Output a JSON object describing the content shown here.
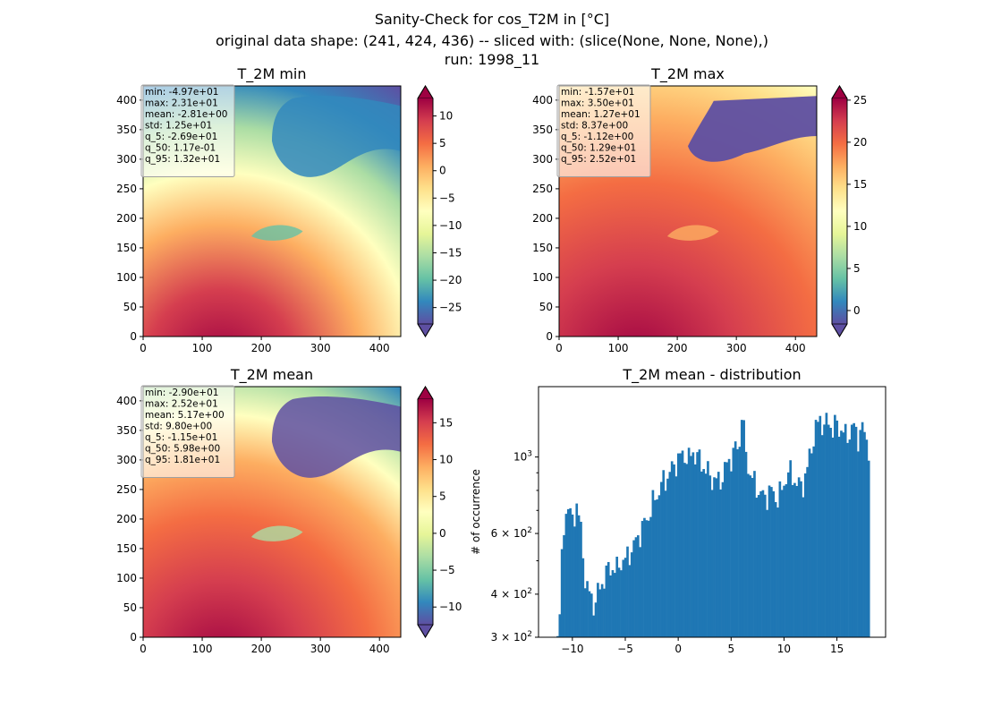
{
  "figure": {
    "suptitle_lines": [
      "Sanity-Check for cos_T2M in [°C]",
      "original data shape: (241, 424, 436) -- sliced with: (slice(None, None, None),)",
      "run: 1998_11"
    ]
  },
  "colors": {
    "spectral_r": [
      "#5e4fa2",
      "#3288bd",
      "#66c2a5",
      "#abdda4",
      "#e6f598",
      "#ffffbf",
      "#fee08b",
      "#fdae61",
      "#f46d43",
      "#d53e4f",
      "#9e0142"
    ],
    "histogram_bar": "#1f77b4",
    "stats_box_fill": "#ffffff",
    "stats_box_edge": "#a0a0a0"
  },
  "chart_data": [
    {
      "type": "heatmap",
      "title": "T_2M min",
      "xlim": [
        0,
        436
      ],
      "ylim": [
        0,
        424
      ],
      "xticks": [
        0,
        100,
        200,
        300,
        400
      ],
      "yticks": [
        0,
        50,
        100,
        150,
        200,
        250,
        300,
        350,
        400
      ],
      "colorbar": {
        "vmin": -28,
        "vmax": 13.2,
        "ticks": [
          10,
          5,
          0,
          -5,
          -10,
          -15,
          -20,
          -25
        ],
        "extend": "both"
      },
      "stats": [
        "min: -4.97e+01",
        "max: 2.31e+01",
        "mean: -2.81e+00",
        "std: 1.25e+01",
        "q_5: -2.69e+01",
        "q_50: 1.17e-01",
        "q_95: 1.32e+01"
      ]
    },
    {
      "type": "heatmap",
      "title": "T_2M max",
      "xlim": [
        0,
        436
      ],
      "ylim": [
        0,
        424
      ],
      "xticks": [
        0,
        100,
        200,
        300,
        400
      ],
      "yticks": [
        0,
        50,
        100,
        150,
        200,
        250,
        300,
        350,
        400
      ],
      "colorbar": {
        "vmin": -1.6,
        "vmax": 25.2,
        "ticks": [
          25,
          20,
          15,
          10,
          5,
          0
        ],
        "extend": "both"
      },
      "stats": [
        "min: -1.57e+01",
        "max: 3.50e+01",
        "mean: 1.27e+01",
        "std: 8.37e+00",
        "q_5: -1.12e+00",
        "q_50: 1.29e+01",
        "q_95: 2.52e+01"
      ]
    },
    {
      "type": "heatmap",
      "title": "T_2M mean",
      "xlim": [
        0,
        436
      ],
      "ylim": [
        0,
        424
      ],
      "xticks": [
        0,
        100,
        200,
        300,
        400
      ],
      "yticks": [
        0,
        50,
        100,
        150,
        200,
        250,
        300,
        350,
        400
      ],
      "colorbar": {
        "vmin": -12.4,
        "vmax": 18.2,
        "ticks": [
          15,
          10,
          5,
          0,
          -5,
          -10
        ],
        "extend": "both"
      },
      "stats": [
        "min: -2.90e+01",
        "max: 2.52e+01",
        "mean: 5.17e+00",
        "std: 9.80e+00",
        "q_5: -1.15e+01",
        "q_50: 5.98e+00",
        "q_95: 1.81e+01"
      ]
    },
    {
      "type": "bar",
      "title": "T_2M mean - distribution",
      "ylabel": "# of occurrence",
      "yscale": "log",
      "xlim": [
        -13.2,
        19.6
      ],
      "ylim": [
        300,
        1600
      ],
      "xticks": [
        -10,
        -5,
        0,
        5,
        10,
        15
      ],
      "yticks_major": [
        {
          "value": 300,
          "base": "3 × 10",
          "exp": "2"
        },
        {
          "value": 400,
          "base": "4 × 10",
          "exp": "2"
        },
        {
          "value": 600,
          "base": "6 × 10",
          "exp": "2"
        },
        {
          "value": 1000,
          "base": "10",
          "exp": "3"
        }
      ],
      "bin_width": 0.2,
      "anchors": [
        [
          -11.5,
          300
        ],
        [
          -11.2,
          360
        ],
        [
          -10.9,
          560
        ],
        [
          -10.6,
          700
        ],
        [
          -10.4,
          740
        ],
        [
          -10.2,
          680
        ],
        [
          -10.0,
          640
        ],
        [
          -9.8,
          680
        ],
        [
          -9.6,
          740
        ],
        [
          -9.3,
          650
        ],
        [
          -9.1,
          560
        ],
        [
          -8.9,
          470
        ],
        [
          -8.6,
          420
        ],
        [
          -8.3,
          390
        ],
        [
          -8.0,
          375
        ],
        [
          -7.7,
          395
        ],
        [
          -7.3,
          420
        ],
        [
          -7.0,
          450
        ],
        [
          -6.6,
          470
        ],
        [
          -6.2,
          480
        ],
        [
          -5.8,
          470
        ],
        [
          -5.4,
          500
        ],
        [
          -5.0,
          500
        ],
        [
          -4.6,
          530
        ],
        [
          -4.2,
          550
        ],
        [
          -3.8,
          590
        ],
        [
          -3.4,
          620
        ],
        [
          -3.0,
          660
        ],
        [
          -2.6,
          700
        ],
        [
          -2.2,
          760
        ],
        [
          -1.8,
          800
        ],
        [
          -1.4,
          850
        ],
        [
          -1.0,
          880
        ],
        [
          -0.6,
          920
        ],
        [
          -0.2,
          970
        ],
        [
          0.2,
          1000
        ],
        [
          0.6,
          1020
        ],
        [
          1.0,
          980
        ],
        [
          1.4,
          1040
        ],
        [
          1.8,
          1000
        ],
        [
          2.2,
          960
        ],
        [
          2.6,
          920
        ],
        [
          3.0,
          880
        ],
        [
          3.4,
          860
        ],
        [
          3.8,
          850
        ],
        [
          4.2,
          880
        ],
        [
          4.6,
          950
        ],
        [
          5.0,
          1000
        ],
        [
          5.4,
          1050
        ],
        [
          5.8,
          1100
        ],
        [
          6.0,
          1350
        ],
        [
          6.3,
          1080
        ],
        [
          6.6,
          940
        ],
        [
          7.0,
          860
        ],
        [
          7.4,
          820
        ],
        [
          7.8,
          780
        ],
        [
          8.2,
          760
        ],
        [
          8.6,
          800
        ],
        [
          9.0,
          780
        ],
        [
          9.4,
          760
        ],
        [
          9.8,
          800
        ],
        [
          10.2,
          880
        ],
        [
          10.6,
          900
        ],
        [
          11.0,
          860
        ],
        [
          11.4,
          820
        ],
        [
          11.8,
          840
        ],
        [
          12.2,
          920
        ],
        [
          12.6,
          1080
        ],
        [
          13.0,
          1200
        ],
        [
          13.4,
          1300
        ],
        [
          13.8,
          1220
        ],
        [
          14.2,
          1280
        ],
        [
          14.6,
          1200
        ],
        [
          15.0,
          1250
        ],
        [
          15.4,
          1200
        ],
        [
          15.8,
          1150
        ],
        [
          16.2,
          1180
        ],
        [
          16.6,
          1220
        ],
        [
          17.0,
          1150
        ],
        [
          17.4,
          1200
        ],
        [
          17.8,
          1150
        ],
        [
          18.0,
          1050
        ],
        [
          18.1,
          300
        ]
      ]
    }
  ]
}
